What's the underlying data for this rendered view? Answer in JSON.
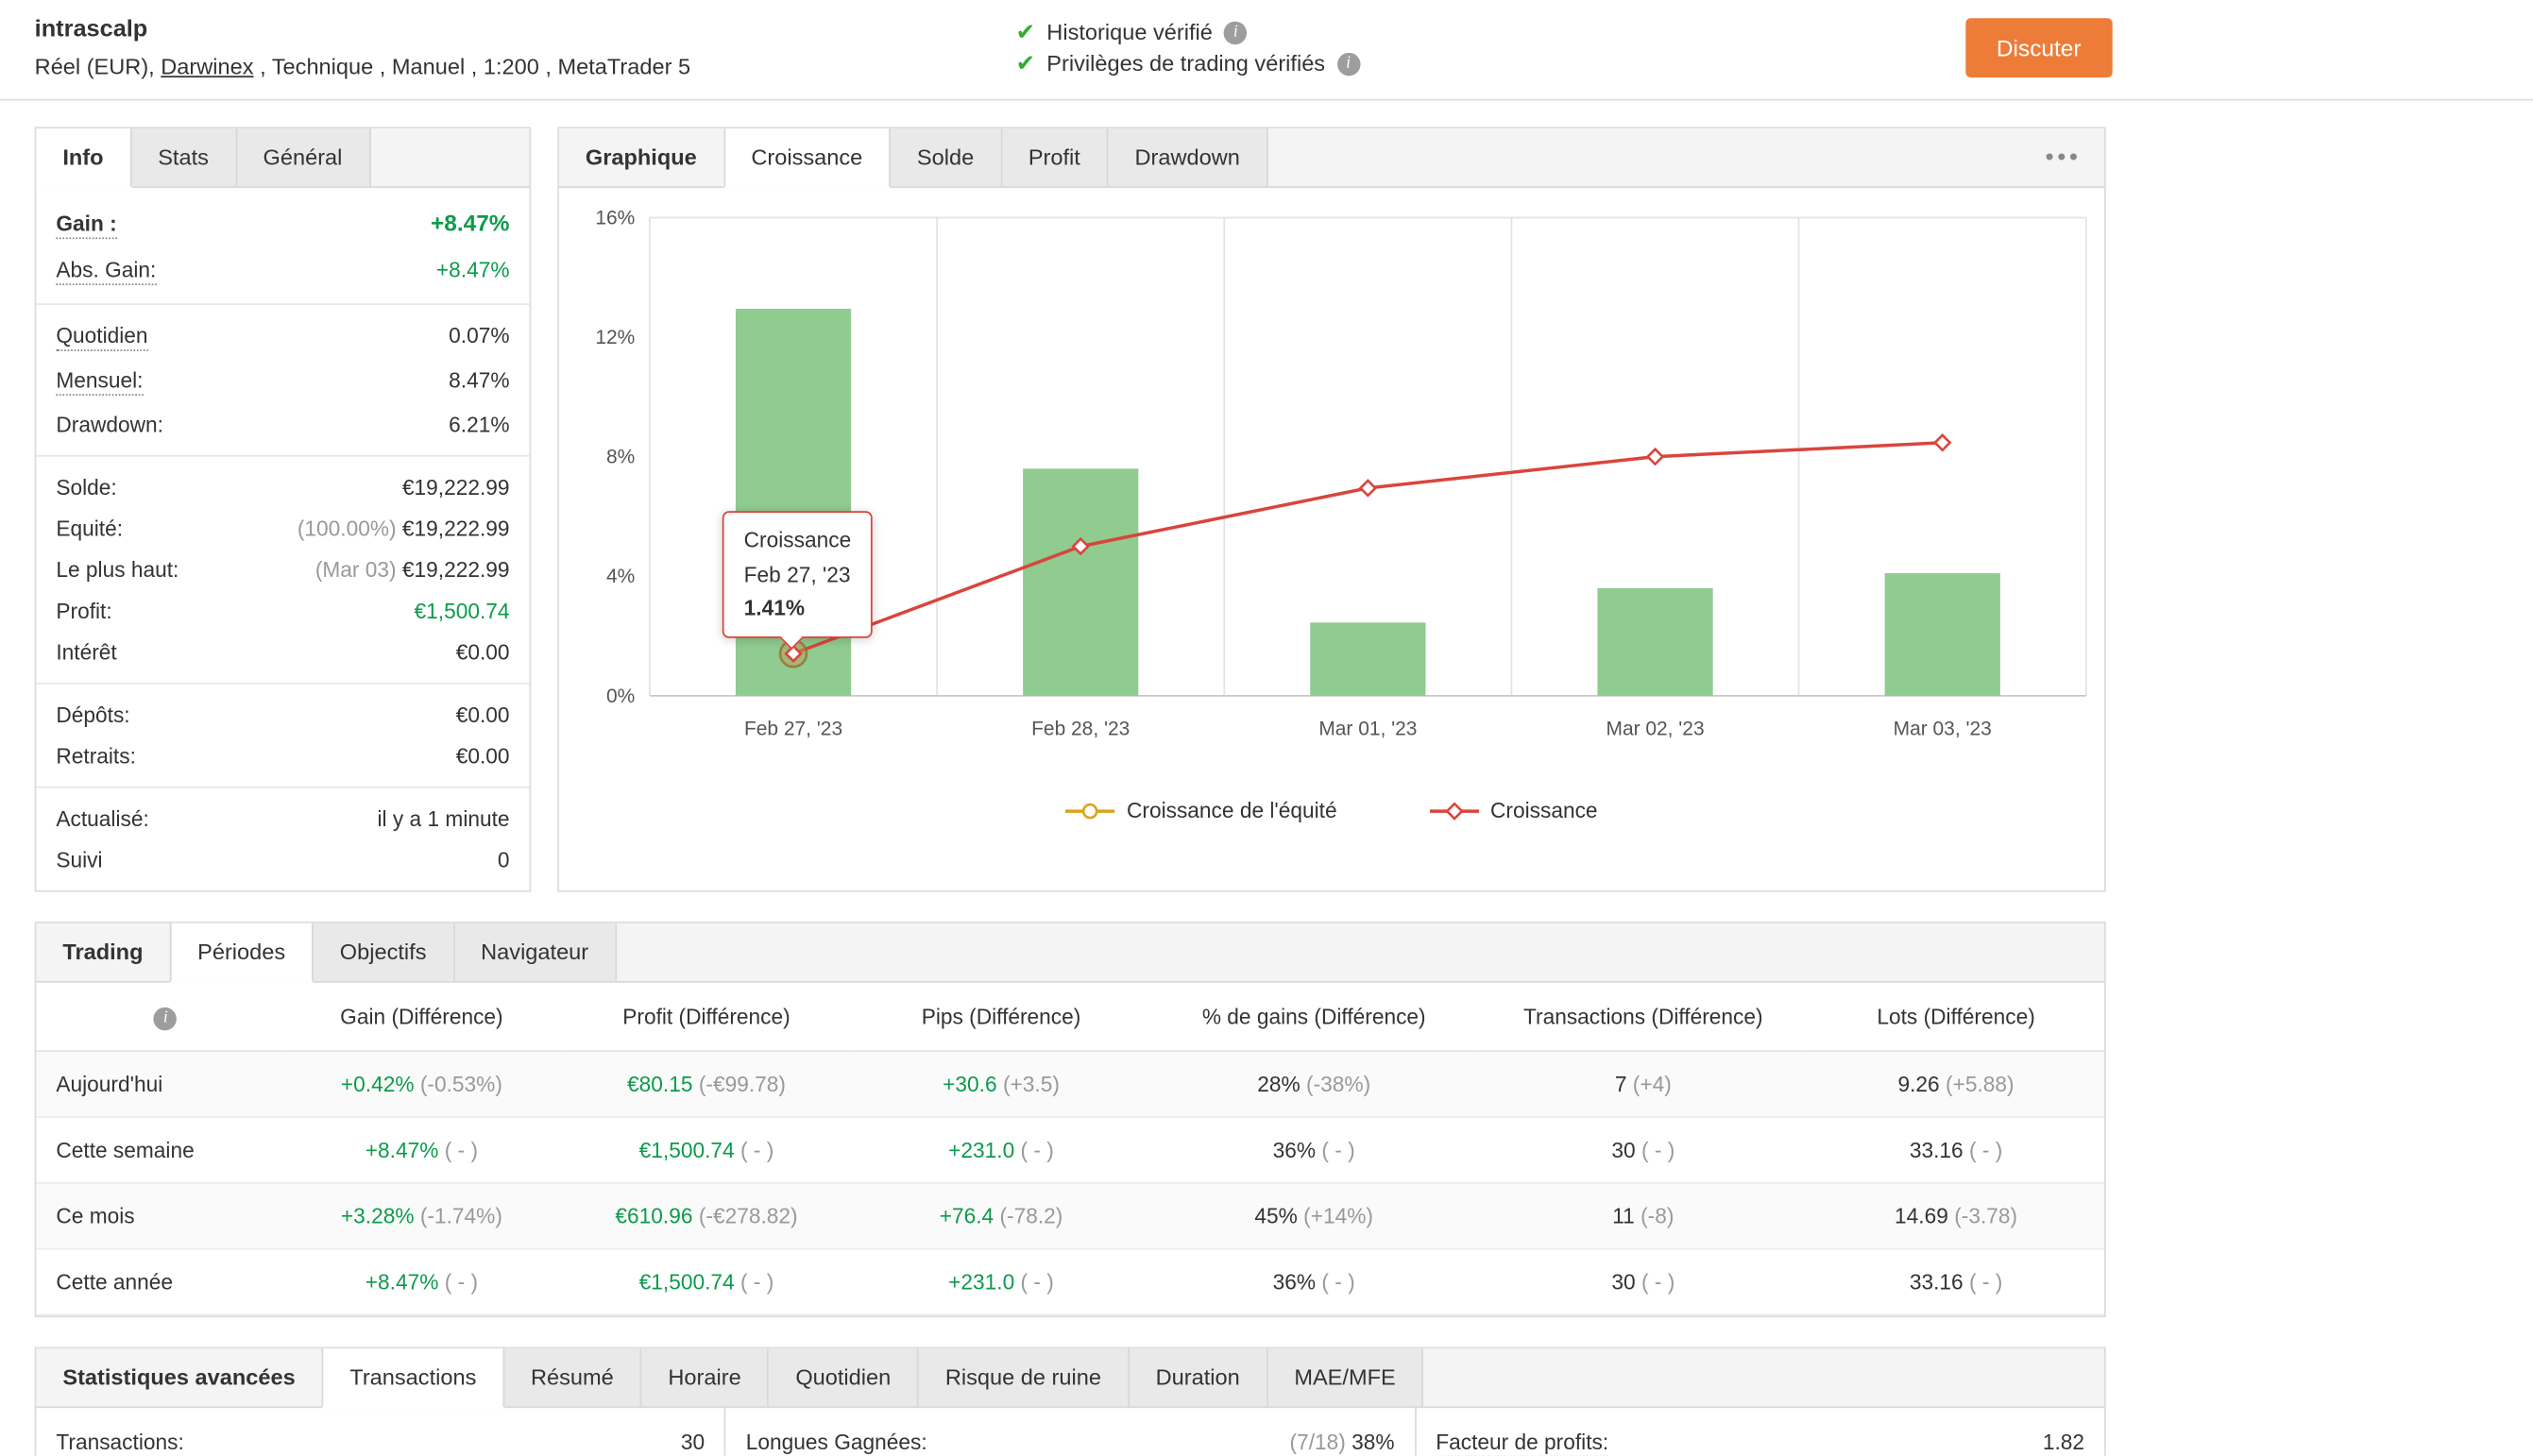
{
  "header": {
    "account_name": "intrascalp",
    "account_meta_prefix": "Réel (EUR), ",
    "broker_link": "Darwinex",
    "account_meta_suffix": " , Technique , Manuel , 1:200 , MetaTrader 5",
    "badges": [
      {
        "label": "Historique vérifié"
      },
      {
        "label": "Privilèges de trading vérifiés"
      }
    ],
    "chat_button": "Discuter"
  },
  "icons": {
    "menu_dots": "•••",
    "check": "✔",
    "info": "i"
  },
  "info_panel": {
    "tabs": [
      {
        "label": "Info",
        "active": true
      },
      {
        "label": "Stats"
      },
      {
        "label": "Général"
      }
    ],
    "rows": [
      {
        "label": "Gain :",
        "value": "+8.47%",
        "value_class": "green",
        "big": true,
        "dotted": true
      },
      {
        "label": "Abs. Gain:",
        "value": "+8.47%",
        "value_class": "green",
        "dotted": true
      },
      {
        "sep": true
      },
      {
        "label": "Quotidien",
        "value": "0.07%",
        "dotted": true
      },
      {
        "label": "Mensuel:",
        "value": "8.47%",
        "dotted": true
      },
      {
        "label": "Drawdown:",
        "value": "6.21%"
      },
      {
        "sep": true
      },
      {
        "label": "Solde:",
        "value": "€19,222.99"
      },
      {
        "label": "Equité:",
        "prefix": "(100.00%)",
        "value": "€19,222.99"
      },
      {
        "label": "Le plus haut:",
        "prefix": "(Mar 03)",
        "value": "€19,222.99"
      },
      {
        "label": "Profit:",
        "value": "€1,500.74",
        "value_class": "green"
      },
      {
        "label": "Intérêt",
        "value": "€0.00"
      },
      {
        "sep": true
      },
      {
        "label": "Dépôts:",
        "value": "€0.00"
      },
      {
        "label": "Retraits:",
        "value": "€0.00"
      },
      {
        "sep": true
      },
      {
        "label": "Actualisé:",
        "value": "il y a 1 minute"
      },
      {
        "label": "Suivi",
        "value": "0"
      }
    ]
  },
  "chart_panel": {
    "section_label": "Graphique",
    "tabs": [
      {
        "label": "Croissance",
        "active": true
      },
      {
        "label": "Solde"
      },
      {
        "label": "Profit"
      },
      {
        "label": "Drawdown"
      }
    ]
  },
  "chart_data": {
    "type": "bar",
    "title": "Croissance",
    "categories": [
      "Feb 27, '23",
      "Feb 28, '23",
      "Mar 01, '23",
      "Mar 02, '23",
      "Mar 03, '23"
    ],
    "bar_values": [
      12.95,
      7.6,
      2.45,
      3.6,
      4.1
    ],
    "bar_color": "#90cb90",
    "line_series": {
      "name": "Croissance",
      "color": "#d9453c",
      "values": [
        1.41,
        5.0,
        6.95,
        8.0,
        8.47
      ]
    },
    "legend": [
      {
        "label": "Croissance de l'équité",
        "color": "#d9a518",
        "marker": "circle"
      },
      {
        "label": "Croissance",
        "color": "#d9453c",
        "marker": "diamond"
      }
    ],
    "ylim": [
      0,
      16
    ],
    "yticks": [
      0,
      4,
      8,
      12,
      16
    ],
    "ytick_suffix": "%",
    "grid": "vertical",
    "legend_position": "bottom",
    "highlight_index": 0,
    "tooltip": {
      "series": "Croissance",
      "date": "Feb 27, '23",
      "value": "1.41%"
    }
  },
  "trading": {
    "section_label": "Trading",
    "tabs": [
      {
        "label": "Périodes",
        "active": true
      },
      {
        "label": "Objectifs"
      },
      {
        "label": "Navigateur"
      }
    ],
    "columns": [
      "Gain (Différence)",
      "Profit (Différence)",
      "Pips (Différence)",
      "% de gains (Différence)",
      "Transactions (Différence)",
      "Lots (Différence)"
    ],
    "rows": [
      {
        "label": "Aujourd'hui",
        "cells": [
          {
            "main": "+0.42%",
            "diff": "(-0.53%)",
            "green": true
          },
          {
            "main": "€80.15",
            "diff": "(-€99.78)",
            "green": true
          },
          {
            "main": "+30.6",
            "diff": "(+3.5)",
            "green": true
          },
          {
            "main": "28%",
            "diff": "(-38%)"
          },
          {
            "main": "7",
            "diff": "(+4)"
          },
          {
            "main": "9.26",
            "diff": "(+5.88)"
          }
        ]
      },
      {
        "label": "Cette semaine",
        "cells": [
          {
            "main": "+8.47%",
            "diff": "( - )",
            "green": true
          },
          {
            "main": "€1,500.74",
            "diff": "( - )",
            "green": true
          },
          {
            "main": "+231.0",
            "diff": "( - )",
            "green": true
          },
          {
            "main": "36%",
            "diff": "( - )"
          },
          {
            "main": "30",
            "diff": "( - )"
          },
          {
            "main": "33.16",
            "diff": "( - )"
          }
        ]
      },
      {
        "label": "Ce mois",
        "cells": [
          {
            "main": "+3.28%",
            "diff": "(-1.74%)",
            "green": true
          },
          {
            "main": "€610.96",
            "diff": "(-€278.82)",
            "green": true
          },
          {
            "main": "+76.4",
            "diff": "(-78.2)",
            "green": true
          },
          {
            "main": "45%",
            "diff": "(+14%)"
          },
          {
            "main": "11",
            "diff": "(-8)"
          },
          {
            "main": "14.69",
            "diff": "(-3.78)"
          }
        ]
      },
      {
        "label": "Cette année",
        "cells": [
          {
            "main": "+8.47%",
            "diff": "( - )",
            "green": true
          },
          {
            "main": "€1,500.74",
            "diff": "( - )",
            "green": true
          },
          {
            "main": "+231.0",
            "diff": "( - )",
            "green": true
          },
          {
            "main": "36%",
            "diff": "( - )"
          },
          {
            "main": "30",
            "diff": "( - )"
          },
          {
            "main": "33.16",
            "diff": "( - )"
          }
        ]
      }
    ]
  },
  "advanced": {
    "section_label": "Statistiques avancées",
    "tabs": [
      {
        "label": "Transactions",
        "active": true
      },
      {
        "label": "Résumé"
      },
      {
        "label": "Horaire"
      },
      {
        "label": "Quotidien"
      },
      {
        "label": "Risque de ruine"
      },
      {
        "label": "Duration"
      },
      {
        "label": "MAE/MFE"
      }
    ],
    "stats": [
      {
        "label": "Transactions:",
        "value": "30"
      },
      {
        "label": "Longues Gagnées:",
        "prefix": "(7/18)",
        "value": "38%"
      },
      {
        "label": "Facteur de profits:",
        "value": "1.82",
        "dotted": true
      }
    ]
  }
}
